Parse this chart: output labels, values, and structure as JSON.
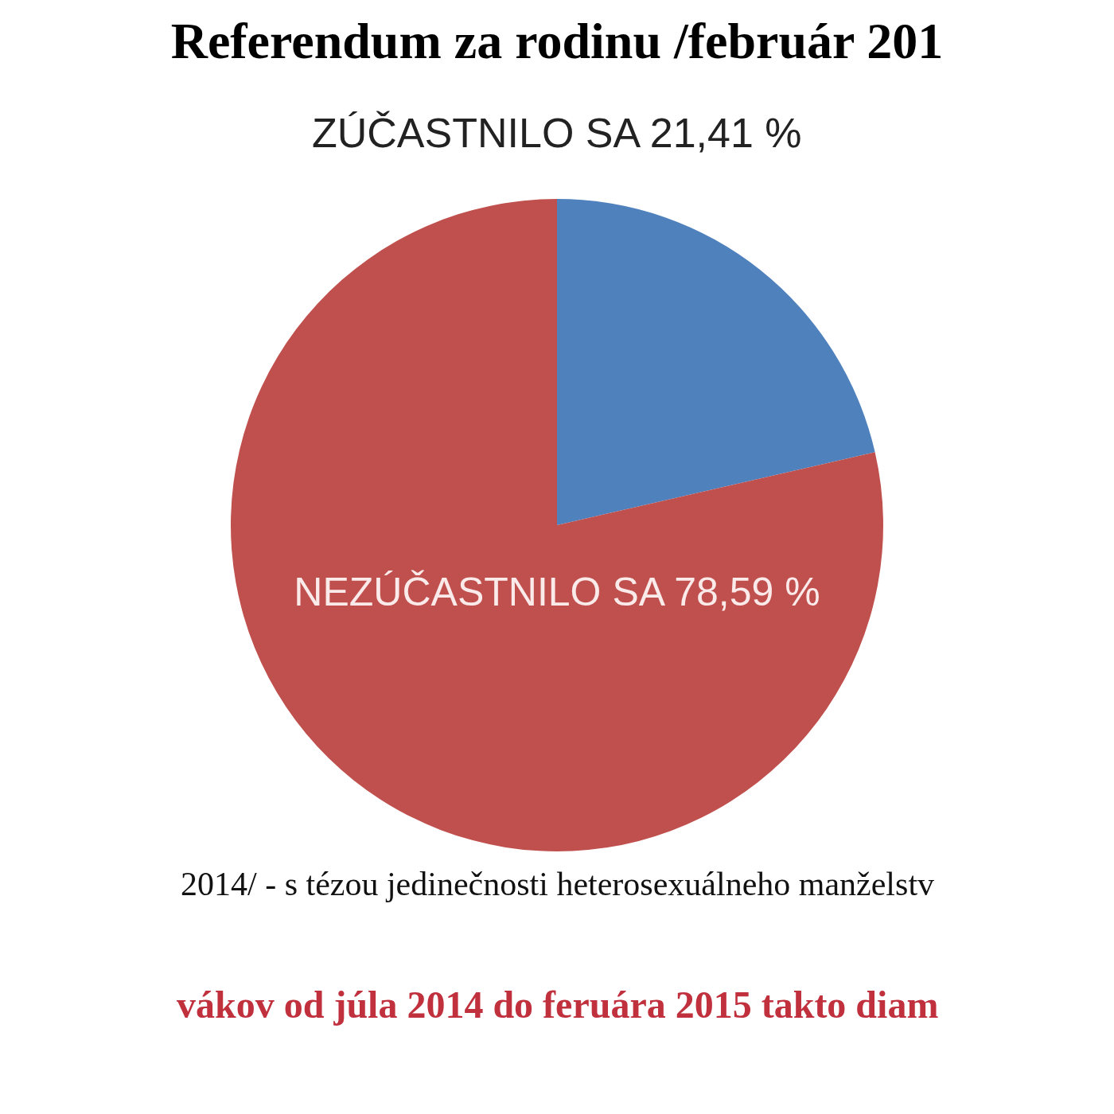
{
  "chart_data": {
    "type": "pie",
    "title": "Referendum za rodinu /február 201",
    "categories": [
      "ZÚČASTNILO SA",
      "NEZÚČASTNILO SA"
    ],
    "values": [
      21.41,
      78.59
    ],
    "colors": [
      "#4f81bd",
      "#c0504d"
    ],
    "value_labels": [
      "21,41 %",
      "78,59 %"
    ],
    "annotations": [
      "2014/ - s tézou jedinečnosti heterosexuálneho manželstv",
      "vákov od júla 2014 do feruára 2015 takto diam"
    ]
  }
}
